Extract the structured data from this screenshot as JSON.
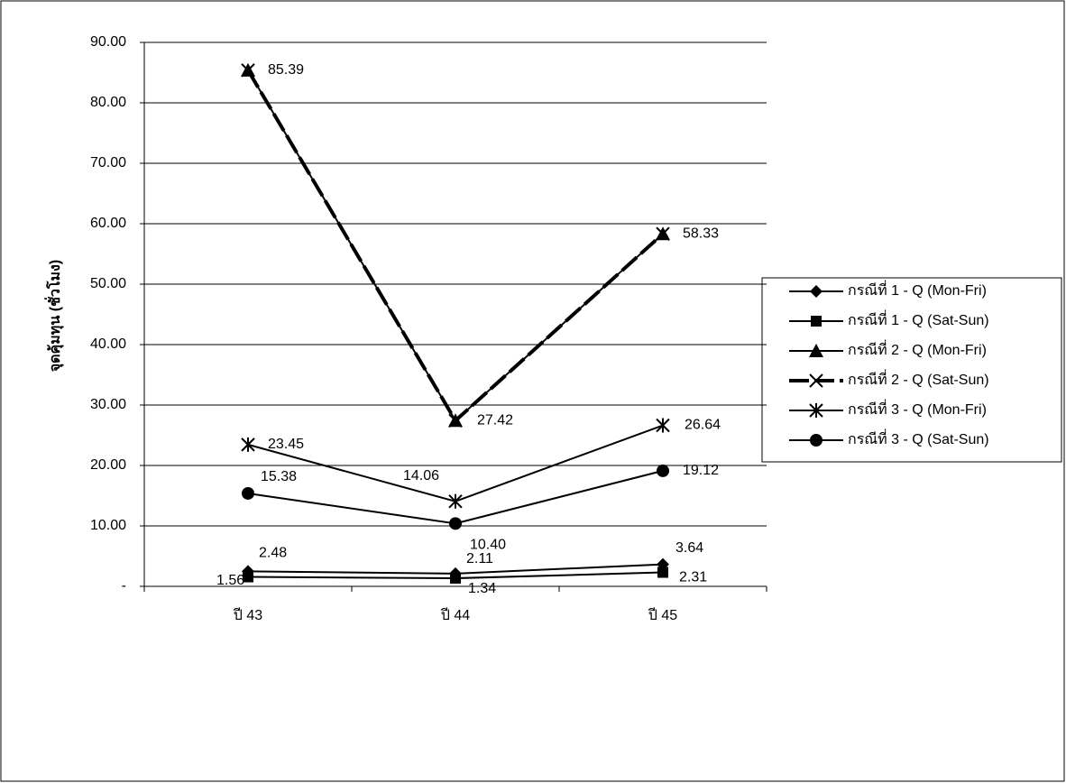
{
  "chart_data": {
    "type": "line",
    "y_label": "จุดคุ้มทุน (ชั่วโมง)",
    "categories": [
      "ปี 43",
      "ปี 44",
      "ปี 45"
    ],
    "ylim": [
      0,
      90
    ],
    "yticks": [
      {
        "value": 0,
        "label": "-"
      },
      {
        "value": 10,
        "label": "10.00"
      },
      {
        "value": 20,
        "label": "20.00"
      },
      {
        "value": 30,
        "label": "30.00"
      },
      {
        "value": 40,
        "label": "40.00"
      },
      {
        "value": 50,
        "label": "50.00"
      },
      {
        "value": 60,
        "label": "60.00"
      },
      {
        "value": 70,
        "label": "70.00"
      },
      {
        "value": 80,
        "label": "80.00"
      },
      {
        "value": 90,
        "label": "90.00"
      }
    ],
    "grid": true,
    "legend": "right",
    "series": [
      {
        "name": "กรณีที่ 1 - Q (Mon-Fri)",
        "color": "#000000",
        "marker": "diamond",
        "line_style": "solid",
        "values": [
          2.48,
          2.11,
          3.64
        ],
        "value_labels": [
          "2.48",
          "2.11",
          "3.64"
        ]
      },
      {
        "name": "กรณีที่ 1 - Q (Sat-Sun)",
        "color": "#000000",
        "marker": "square",
        "line_style": "solid",
        "values": [
          1.56,
          1.34,
          2.31
        ],
        "value_labels": [
          "1.56",
          "1.34",
          "2.31"
        ]
      },
      {
        "name": "กรณีที่ 2 - Q (Mon-Fri)",
        "color": "#000000",
        "marker": "triangle",
        "line_style": "solid",
        "values": [
          85.39,
          27.42,
          58.33
        ],
        "value_labels": [
          "85.39",
          "27.42",
          "58.33"
        ]
      },
      {
        "name": "กรณีที่ 2 - Q (Sat-Sun)",
        "color": "#000000",
        "marker": "x",
        "line_style": "dashed",
        "values": [
          85.39,
          27.42,
          58.33
        ]
      },
      {
        "name": "กรณีที่ 3 - Q (Mon-Fri)",
        "color": "#000000",
        "marker": "asterisk",
        "line_style": "solid",
        "values": [
          23.45,
          14.06,
          26.64
        ],
        "value_labels": [
          "23.45",
          "14.06",
          "26.64"
        ]
      },
      {
        "name": "กรณีที่ 3 - Q (Sat-Sun)",
        "color": "#000000",
        "marker": "circle",
        "line_style": "solid",
        "values": [
          15.38,
          10.4,
          19.12
        ],
        "value_labels": [
          "15.38",
          "10.40",
          "19.12"
        ]
      }
    ]
  }
}
